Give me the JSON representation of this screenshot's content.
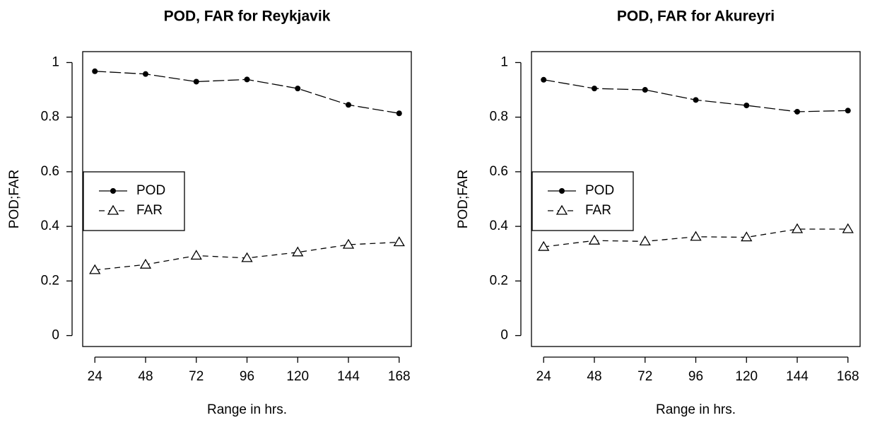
{
  "chart_data": [
    {
      "type": "line",
      "title": "POD, FAR for  Reykjavik",
      "xlabel": "Range in hrs.",
      "ylabel": "POD;FAR",
      "x": [
        24,
        48,
        72,
        96,
        120,
        144,
        168
      ],
      "series": [
        {
          "name": "POD",
          "color": "#000000",
          "marker": "circle",
          "dash": "longdash",
          "values": [
            0.968,
            0.958,
            0.93,
            0.938,
            0.905,
            0.845,
            0.814
          ]
        },
        {
          "name": "FAR",
          "color": "#000000",
          "marker": "triangle",
          "dash": "dashed",
          "values": [
            0.24,
            0.26,
            0.293,
            0.284,
            0.305,
            0.333,
            0.342
          ]
        }
      ],
      "xlim": [
        18.24,
        173.76
      ],
      "ylim": [
        -0.04,
        1.04
      ],
      "xticks": [
        24,
        48,
        72,
        96,
        120,
        144,
        168
      ],
      "yticks": [
        0,
        0.2,
        0.4,
        0.6,
        0.8,
        1
      ],
      "legend": "left"
    },
    {
      "type": "line",
      "title": "POD, FAR for  Akureyri",
      "xlabel": "Range in hrs.",
      "ylabel": "POD;FAR",
      "x": [
        24,
        48,
        72,
        96,
        120,
        144,
        168
      ],
      "series": [
        {
          "name": "POD",
          "color": "#000000",
          "marker": "circle",
          "dash": "longdash",
          "values": [
            0.937,
            0.905,
            0.9,
            0.863,
            0.843,
            0.82,
            0.824
          ]
        },
        {
          "name": "FAR",
          "color": "#000000",
          "marker": "triangle",
          "dash": "dashed",
          "values": [
            0.325,
            0.348,
            0.345,
            0.362,
            0.36,
            0.39,
            0.39
          ]
        }
      ],
      "xlim": [
        18.24,
        173.76
      ],
      "ylim": [
        -0.04,
        1.04
      ],
      "xticks": [
        24,
        48,
        72,
        96,
        120,
        144,
        168
      ],
      "yticks": [
        0,
        0.2,
        0.4,
        0.6,
        0.8,
        1
      ],
      "legend": "left"
    }
  ]
}
